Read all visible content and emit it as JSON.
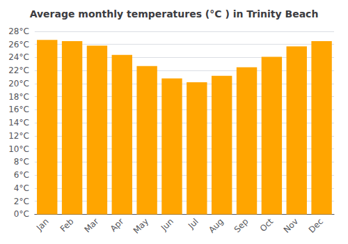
{
  "chart_data": {
    "type": "bar",
    "title": "Average monthly temperatures (°C ) in Trinity Beach",
    "categories": [
      "Jan",
      "Feb",
      "Mar",
      "Apr",
      "May",
      "Jun",
      "Jul",
      "Aug",
      "Sep",
      "Oct",
      "Nov",
      "Dec"
    ],
    "values": [
      26.7,
      26.5,
      25.8,
      24.4,
      22.7,
      20.8,
      20.2,
      21.2,
      22.5,
      24.1,
      25.7,
      26.5
    ],
    "color": "#FFA500",
    "ylim": [
      0,
      28
    ],
    "yticks": [
      {
        "value": 0,
        "label": "0°C"
      },
      {
        "value": 2,
        "label": "2°C"
      },
      {
        "value": 4,
        "label": "4°C"
      },
      {
        "value": 6,
        "label": "6°C"
      },
      {
        "value": 8,
        "label": "8°C"
      },
      {
        "value": 10,
        "label": "10°C"
      },
      {
        "value": 12,
        "label": "12°C"
      },
      {
        "value": 14,
        "label": "14°C"
      },
      {
        "value": 16,
        "label": "16°C"
      },
      {
        "value": 18,
        "label": "18°C"
      },
      {
        "value": 20,
        "label": "20°C"
      },
      {
        "value": 22,
        "label": "22°C"
      },
      {
        "value": 24,
        "label": "24°C"
      },
      {
        "value": 26,
        "label": "26°C"
      },
      {
        "value": 28,
        "label": "28°C"
      }
    ],
    "grid": true
  }
}
